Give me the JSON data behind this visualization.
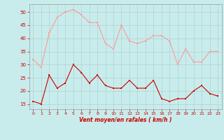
{
  "x": [
    0,
    1,
    2,
    3,
    4,
    5,
    6,
    7,
    8,
    9,
    10,
    11,
    12,
    13,
    14,
    15,
    16,
    17,
    18,
    19,
    20,
    21,
    22,
    23
  ],
  "mean_wind": [
    16,
    15,
    26,
    21,
    23,
    30,
    27,
    23,
    26,
    22,
    21,
    21,
    24,
    21,
    21,
    24,
    17,
    16,
    17,
    17,
    20,
    22,
    19,
    18
  ],
  "gust_wind": [
    32,
    29,
    42,
    48,
    50,
    51,
    49,
    46,
    46,
    38,
    36,
    45,
    39,
    38,
    39,
    41,
    41,
    39,
    30,
    36,
    31,
    31,
    35,
    35
  ],
  "xlabel": "Vent moyen/en rafales ( km/h )",
  "ylim_min": 13,
  "ylim_max": 53,
  "yticks": [
    15,
    20,
    25,
    30,
    35,
    40,
    45,
    50
  ],
  "bg_color": "#c8ecec",
  "grid_color": "#b0d0d0",
  "mean_color": "#cc0000",
  "gust_color": "#ff9999"
}
